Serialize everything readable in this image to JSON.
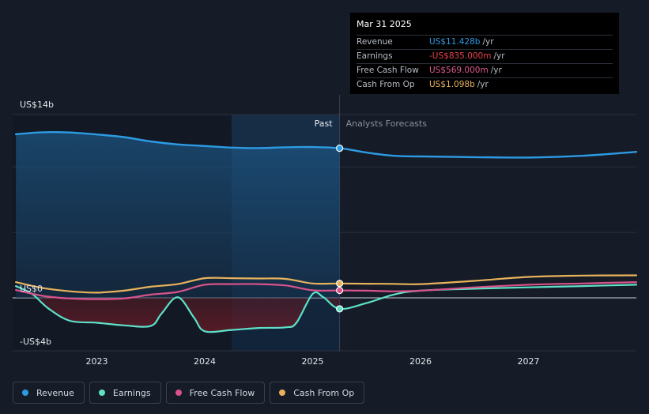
{
  "tooltip": {
    "date": "Mar 31 2025",
    "rows": [
      {
        "label": "Revenue",
        "value": "US$11.428b",
        "unit": "/yr",
        "color": "#2d9be3"
      },
      {
        "label": "Earnings",
        "value": "-US$835.000m",
        "unit": "/yr",
        "color": "#e8404b"
      },
      {
        "label": "Free Cash Flow",
        "value": "US$569.000m",
        "unit": "/yr",
        "color": "#e0588f"
      },
      {
        "label": "Cash From Op",
        "value": "US$1.098b",
        "unit": "/yr",
        "color": "#e8b25c"
      }
    ]
  },
  "legend": [
    {
      "label": "Revenue",
      "color": "#2d9be3"
    },
    {
      "label": "Earnings",
      "color": "#5ee1c8"
    },
    {
      "label": "Free Cash Flow",
      "color": "#d9528a"
    },
    {
      "label": "Cash From Op",
      "color": "#e8b25c"
    }
  ],
  "chart_data": {
    "type": "line",
    "divider_labels": {
      "past": "Past",
      "forecast": "Analysts Forecasts"
    },
    "y_tick_labels": [
      "US$14b",
      "US$0",
      "-US$4b"
    ],
    "y_ticks": [
      14,
      0,
      -4
    ],
    "ylim": [
      -4,
      14
    ],
    "x_tick_labels": [
      "2023",
      "2024",
      "2025",
      "2026",
      "2027"
    ],
    "x_ticks": [
      2023,
      2024,
      2025,
      2026,
      2027
    ],
    "xlim": [
      2022.22,
      2028
    ],
    "past_end": 2025.25,
    "series": [
      {
        "name": "Revenue",
        "color": "#2d9be3",
        "x": [
          2022.25,
          2022.5,
          2022.75,
          2023.0,
          2023.25,
          2023.5,
          2023.75,
          2024.0,
          2024.25,
          2024.5,
          2024.75,
          2025.0,
          2025.25,
          2025.5,
          2025.75,
          2026.0,
          2026.5,
          2027.0,
          2027.5,
          2028.0
        ],
        "y": [
          12.5,
          12.65,
          12.63,
          12.48,
          12.28,
          11.95,
          11.72,
          11.6,
          11.48,
          11.44,
          11.5,
          11.52,
          11.43,
          11.1,
          10.85,
          10.8,
          10.75,
          10.72,
          10.85,
          11.15
        ]
      },
      {
        "name": "Earnings",
        "color": "#5ee1c8",
        "x": [
          2022.25,
          2022.4,
          2022.55,
          2022.75,
          2023.0,
          2023.25,
          2023.5,
          2023.6,
          2023.75,
          2023.9,
          2024.0,
          2024.25,
          2024.5,
          2024.75,
          2024.85,
          2025.0,
          2025.1,
          2025.25,
          2025.5,
          2025.75,
          2026.0,
          2026.5,
          2027.0,
          2027.5,
          2028.0
        ],
        "y": [
          0.9,
          0.3,
          -0.8,
          -1.75,
          -1.9,
          -2.1,
          -2.15,
          -1.2,
          0.05,
          -1.5,
          -2.55,
          -2.45,
          -2.3,
          -2.25,
          -1.9,
          0.3,
          0.05,
          -0.84,
          -0.4,
          0.25,
          0.55,
          0.7,
          0.8,
          0.9,
          1.0
        ]
      },
      {
        "name": "Free Cash Flow",
        "color": "#d9528a",
        "x": [
          2022.25,
          2022.5,
          2022.75,
          2023.0,
          2023.25,
          2023.5,
          2023.75,
          2024.0,
          2024.25,
          2024.5,
          2024.75,
          2025.0,
          2025.25,
          2025.5,
          2025.75,
          2026.0,
          2026.5,
          2027.0,
          2027.5,
          2028.0
        ],
        "y": [
          0.6,
          0.15,
          -0.05,
          -0.1,
          -0.05,
          0.25,
          0.45,
          1.0,
          1.05,
          1.05,
          0.95,
          0.58,
          0.57,
          0.55,
          0.5,
          0.55,
          0.8,
          1.0,
          1.1,
          1.2
        ]
      },
      {
        "name": "Cash From Op",
        "color": "#e8b25c",
        "x": [
          2022.25,
          2022.5,
          2022.75,
          2023.0,
          2023.25,
          2023.5,
          2023.75,
          2024.0,
          2024.25,
          2024.5,
          2024.75,
          2025.0,
          2025.25,
          2025.5,
          2025.75,
          2026.0,
          2026.5,
          2027.0,
          2027.5,
          2028.0
        ],
        "y": [
          1.2,
          0.75,
          0.5,
          0.4,
          0.55,
          0.85,
          1.05,
          1.5,
          1.5,
          1.48,
          1.45,
          1.1,
          1.1,
          1.08,
          1.07,
          1.05,
          1.3,
          1.6,
          1.7,
          1.72
        ]
      }
    ]
  }
}
